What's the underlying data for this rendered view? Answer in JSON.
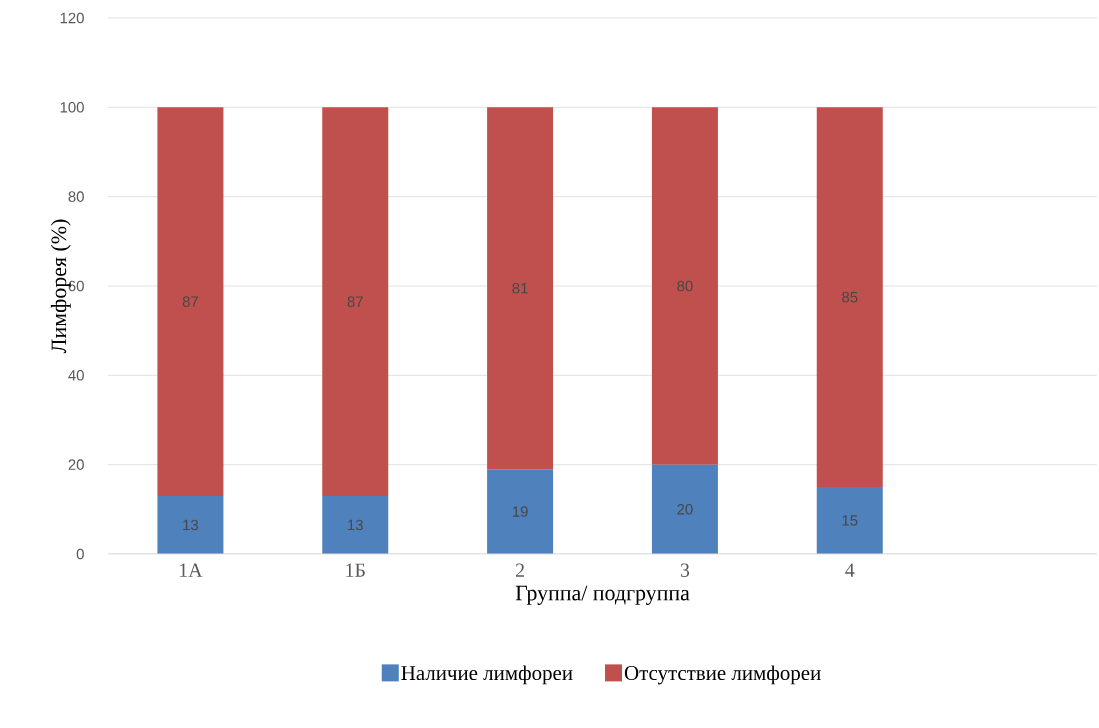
{
  "chart_data": {
    "type": "bar",
    "stacked": true,
    "xlabel": "Группа/ подгруппа",
    "ylabel": "Лимфорея (%)",
    "categories": [
      "1А",
      "1Б",
      "2",
      "3",
      "4",
      null
    ],
    "series": [
      {
        "name": "Наличие лимфореи",
        "color": "#4f81bd",
        "values": [
          13,
          13,
          19,
          20,
          15,
          null
        ]
      },
      {
        "name": "Отсутствие лимфореи",
        "color": "#c0504d",
        "values": [
          87,
          87,
          81,
          80,
          85,
          null
        ]
      }
    ],
    "ylim": [
      0,
      120
    ],
    "yticks": [
      0,
      20,
      40,
      60,
      80,
      100,
      120
    ],
    "grid": "y",
    "legend": "bottom",
    "data_labels": true
  }
}
